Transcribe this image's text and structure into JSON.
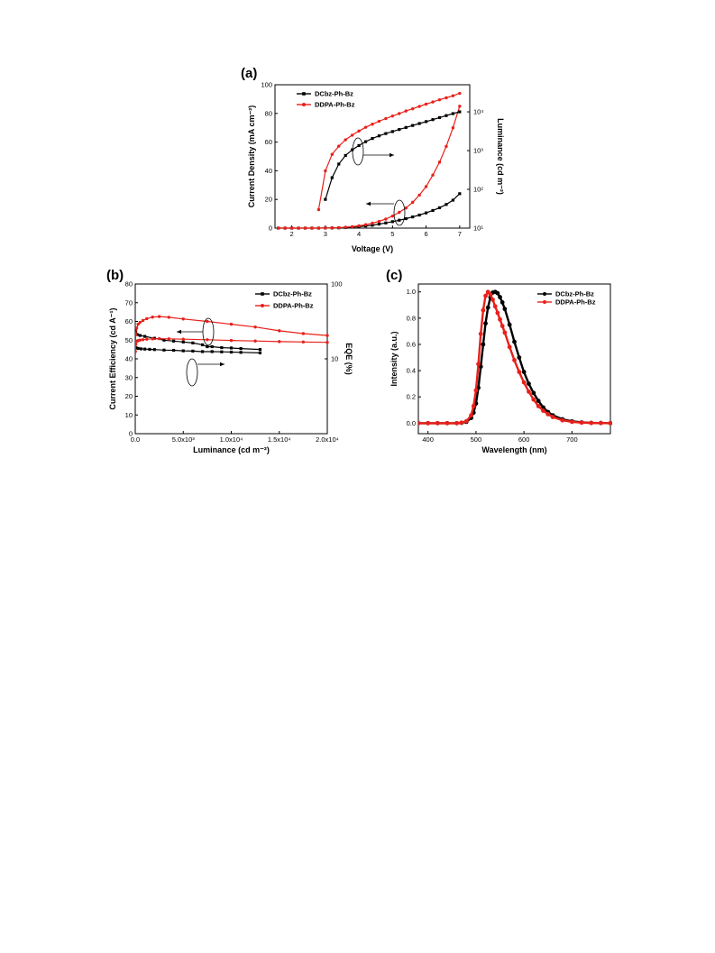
{
  "chart_data": [
    {
      "panel": "(a)",
      "type": "line",
      "xlabel": "Voltage (V)",
      "ylabel": "Current Density (mA cm⁻²)",
      "y2label": "Luminance (cd m⁻²)",
      "xlim": [
        1.5,
        7.3
      ],
      "ylim": [
        0,
        100
      ],
      "y2lim": [
        10,
        50000
      ],
      "y2_scale": "log",
      "xticks": [
        {
          "v": 2,
          "t": "2"
        },
        {
          "v": 3,
          "t": "3"
        },
        {
          "v": 4,
          "t": "4"
        },
        {
          "v": 5,
          "t": "5"
        },
        {
          "v": 6,
          "t": "6"
        },
        {
          "v": 7,
          "t": "7"
        }
      ],
      "yticks": [
        {
          "v": 0,
          "t": "0"
        },
        {
          "v": 20,
          "t": "20"
        },
        {
          "v": 40,
          "t": "40"
        },
        {
          "v": 60,
          "t": "60"
        },
        {
          "v": 80,
          "t": "80"
        },
        {
          "v": 100,
          "t": "100"
        }
      ],
      "y2ticks": [
        {
          "v": 10,
          "t": "10¹"
        },
        {
          "v": 100,
          "t": "10²"
        },
        {
          "v": 1000,
          "t": "10³"
        },
        {
          "v": 10000,
          "t": "10⁴"
        }
      ],
      "legend_position": "top-left",
      "colors": {
        "DCbz-Ph-Bz": "#000000",
        "DDPA-Ph-Bz": "#e8201a"
      },
      "series": [
        {
          "name": "DCbz-Ph-Bz",
          "axis": "left",
          "color": "#000000",
          "marker": "square",
          "x": [
            1.6,
            1.8,
            2.0,
            2.2,
            2.4,
            2.6,
            2.8,
            3.0,
            3.2,
            3.4,
            3.6,
            3.8,
            4.0,
            4.2,
            4.4,
            4.6,
            4.8,
            5.0,
            5.2,
            5.4,
            5.6,
            5.8,
            6.0,
            6.2,
            6.4,
            6.6,
            6.8,
            7.0
          ],
          "y": [
            0,
            0,
            0,
            0,
            0,
            0,
            0,
            0.05,
            0.1,
            0.2,
            0.4,
            0.7,
            1.0,
            1.5,
            2.0,
            2.8,
            3.6,
            4.5,
            5.5,
            6.6,
            7.8,
            9.1,
            10.6,
            12.3,
            14.2,
            16.5,
            19.5,
            24
          ]
        },
        {
          "name": "DDPA-Ph-Bz",
          "axis": "left",
          "color": "#e8201a",
          "marker": "circle",
          "x": [
            1.6,
            1.8,
            2.0,
            2.2,
            2.4,
            2.6,
            2.8,
            3.0,
            3.2,
            3.4,
            3.6,
            3.8,
            4.0,
            4.2,
            4.4,
            4.6,
            4.8,
            5.0,
            5.2,
            5.4,
            5.6,
            5.8,
            6.0,
            6.2,
            6.4,
            6.6,
            6.8,
            7.0
          ],
          "y": [
            0,
            0,
            0,
            0,
            0,
            0,
            0,
            0.05,
            0.15,
            0.3,
            0.6,
            1.0,
            1.6,
            2.4,
            3.4,
            4.7,
            6.3,
            8.4,
            11,
            14,
            18,
            23,
            29,
            37,
            46,
            57,
            70,
            85
          ]
        },
        {
          "name": "DCbz-Ph-Bz",
          "axis": "right",
          "color": "#000000",
          "marker": "square",
          "x": [
            3.0,
            3.2,
            3.4,
            3.6,
            3.8,
            4.0,
            4.2,
            4.4,
            4.6,
            4.8,
            5.0,
            5.2,
            5.4,
            5.6,
            5.8,
            6.0,
            6.2,
            6.4,
            6.6,
            6.8,
            7.0
          ],
          "y": [
            55,
            200,
            450,
            750,
            1050,
            1350,
            1700,
            2050,
            2400,
            2750,
            3100,
            3500,
            3950,
            4450,
            5000,
            5600,
            6300,
            7100,
            8000,
            9000,
            10000
          ]
        },
        {
          "name": "DDPA-Ph-Bz",
          "axis": "right",
          "color": "#e8201a",
          "marker": "circle",
          "x": [
            2.8,
            3.0,
            3.2,
            3.4,
            3.6,
            3.8,
            4.0,
            4.2,
            4.4,
            4.6,
            4.8,
            5.0,
            5.2,
            5.4,
            5.6,
            5.8,
            6.0,
            6.2,
            6.4,
            6.6,
            6.8,
            7.0
          ],
          "y": [
            30,
            300,
            800,
            1300,
            1900,
            2500,
            3200,
            4000,
            4800,
            5700,
            6700,
            7800,
            9000,
            10500,
            12000,
            13800,
            15800,
            18000,
            20500,
            23000,
            26000,
            30000
          ]
        }
      ]
    },
    {
      "panel": "(b)",
      "type": "line",
      "xlabel": "Luminance (cd m⁻²)",
      "ylabel": "Current Efficiency (cd A⁻¹)",
      "y2label": "EQE (%)",
      "xlim": [
        0,
        20000
      ],
      "ylim": [
        0,
        80
      ],
      "y2lim": [
        1,
        100
      ],
      "y2_scale": "log",
      "xticks": [
        {
          "v": 0,
          "t": "0.0"
        },
        {
          "v": 5000,
          "t": "5.0x10³"
        },
        {
          "v": 10000,
          "t": "1.0x10⁴"
        },
        {
          "v": 15000,
          "t": "1.5x10⁴"
        },
        {
          "v": 20000,
          "t": "2.0x10⁴"
        }
      ],
      "yticks": [
        {
          "v": 0,
          "t": "0"
        },
        {
          "v": 10,
          "t": "10"
        },
        {
          "v": 20,
          "t": "20"
        },
        {
          "v": 30,
          "t": "30"
        },
        {
          "v": 40,
          "t": "40"
        },
        {
          "v": 50,
          "t": "50"
        },
        {
          "v": 60,
          "t": "60"
        },
        {
          "v": 70,
          "t": "70"
        },
        {
          "v": 80,
          "t": "80"
        }
      ],
      "y2ticks": [
        {
          "v": 10,
          "t": "10"
        },
        {
          "v": 100,
          "t": "100"
        }
      ],
      "legend_position": "top-right",
      "colors": {
        "DCbz-Ph-Bz": "#000000",
        "DDPA-Ph-Bz": "#e8201a"
      },
      "series": [
        {
          "name": "DCbz-Ph-Bz",
          "axis": "left",
          "color": "#000000",
          "marker": "square",
          "x": [
            5,
            50,
            200,
            500,
            1000,
            2000,
            3000,
            4000,
            5000,
            6000,
            7000,
            7500,
            8000,
            9000,
            10000,
            11000,
            13000
          ],
          "y": [
            56,
            55,
            53,
            52.5,
            52,
            51,
            50,
            49.5,
            49,
            48.5,
            47.5,
            46.5,
            46.5,
            46,
            45.8,
            45.5,
            45
          ]
        },
        {
          "name": "DDPA-Ph-Bz",
          "axis": "left",
          "color": "#e8201a",
          "marker": "circle",
          "x": [
            5,
            50,
            150,
            300,
            500,
            800,
            1200,
            1800,
            2500,
            3500,
            5000,
            7500,
            10000,
            12500,
            15000,
            17500,
            20000
          ],
          "y": [
            44,
            53,
            56.5,
            58.5,
            59.5,
            60.5,
            61.5,
            62.3,
            62.6,
            62.2,
            61.3,
            60,
            58.5,
            57,
            55,
            53.5,
            52.5
          ]
        },
        {
          "name": "DCbz-Ph-Bz",
          "axis": "right",
          "color": "#000000",
          "marker": "square",
          "x": [
            5,
            100,
            300,
            600,
            1000,
            1500,
            2000,
            3000,
            4000,
            5000,
            6000,
            7000,
            8000,
            9000,
            10000,
            11000,
            13000
          ],
          "y": [
            14,
            14,
            13.8,
            13.6,
            13.5,
            13.4,
            13.3,
            13.1,
            13,
            12.8,
            12.7,
            12.5,
            12.5,
            12.4,
            12.3,
            12.2,
            12
          ]
        },
        {
          "name": "DDPA-Ph-Bz",
          "axis": "right",
          "color": "#e8201a",
          "marker": "circle",
          "x": [
            5,
            50,
            150,
            300,
            500,
            800,
            1200,
            1800,
            2500,
            3500,
            5000,
            7500,
            10000,
            12500,
            15000,
            17500,
            20000
          ],
          "y": [
            12.5,
            15.5,
            17,
            17.5,
            17.8,
            18,
            18.3,
            18.5,
            18.6,
            18.5,
            18.3,
            18,
            17.6,
            17.3,
            17,
            16.8,
            16.6
          ]
        }
      ]
    },
    {
      "panel": "(c)",
      "type": "line",
      "xlabel": "Wavelength (nm)",
      "ylabel": "Intensity (a.u.)",
      "xlim": [
        380,
        780
      ],
      "ylim": [
        -0.08,
        1.06
      ],
      "xticks": [
        {
          "v": 400,
          "t": "400"
        },
        {
          "v": 500,
          "t": "500"
        },
        {
          "v": 600,
          "t": "600"
        },
        {
          "v": 700,
          "t": "700"
        }
      ],
      "yticks": [
        {
          "v": 0,
          "t": "0.0"
        },
        {
          "v": 0.2,
          "t": "0.2"
        },
        {
          "v": 0.4,
          "t": "0.4"
        },
        {
          "v": 0.6,
          "t": "0.6"
        },
        {
          "v": 0.8,
          "t": "0.8"
        },
        {
          "v": 1.0,
          "t": "1.0"
        }
      ],
      "legend_position": "top-right",
      "colors": {
        "DCbz-Ph-Bz": "#000000",
        "DDPA-Ph-Bz": "#e8201a"
      },
      "series": [
        {
          "name": "DCbz-Ph-Bz",
          "color": "#000000",
          "marker": "circle",
          "x": [
            380,
            400,
            420,
            440,
            460,
            470,
            480,
            490,
            495,
            500,
            505,
            510,
            515,
            520,
            525,
            530,
            535,
            540,
            545,
            550,
            555,
            560,
            570,
            580,
            590,
            600,
            610,
            620,
            630,
            640,
            650,
            660,
            680,
            700,
            720,
            740,
            760,
            780
          ],
          "y": [
            0,
            0,
            0,
            0,
            0,
            0.003,
            0.01,
            0.04,
            0.08,
            0.15,
            0.27,
            0.43,
            0.6,
            0.76,
            0.88,
            0.96,
            0.995,
            1.0,
            0.99,
            0.96,
            0.92,
            0.87,
            0.75,
            0.62,
            0.5,
            0.39,
            0.3,
            0.23,
            0.17,
            0.12,
            0.085,
            0.06,
            0.03,
            0.014,
            0.006,
            0.002,
            0.001,
            0
          ]
        },
        {
          "name": "DDPA-Ph-Bz",
          "color": "#e8201a",
          "marker": "circle",
          "x": [
            380,
            400,
            420,
            440,
            460,
            470,
            480,
            490,
            495,
            500,
            505,
            510,
            515,
            520,
            525,
            530,
            535,
            540,
            545,
            550,
            555,
            560,
            570,
            580,
            590,
            600,
            610,
            620,
            630,
            640,
            650,
            660,
            680,
            700,
            720,
            740,
            760,
            780
          ],
          "y": [
            0,
            0,
            0,
            0,
            0,
            0.004,
            0.015,
            0.06,
            0.13,
            0.25,
            0.45,
            0.68,
            0.86,
            0.97,
            1.0,
            0.98,
            0.94,
            0.89,
            0.84,
            0.79,
            0.74,
            0.69,
            0.58,
            0.48,
            0.39,
            0.31,
            0.24,
            0.18,
            0.13,
            0.095,
            0.068,
            0.047,
            0.022,
            0.01,
            0.004,
            0.002,
            0.001,
            0
          ]
        }
      ]
    }
  ]
}
